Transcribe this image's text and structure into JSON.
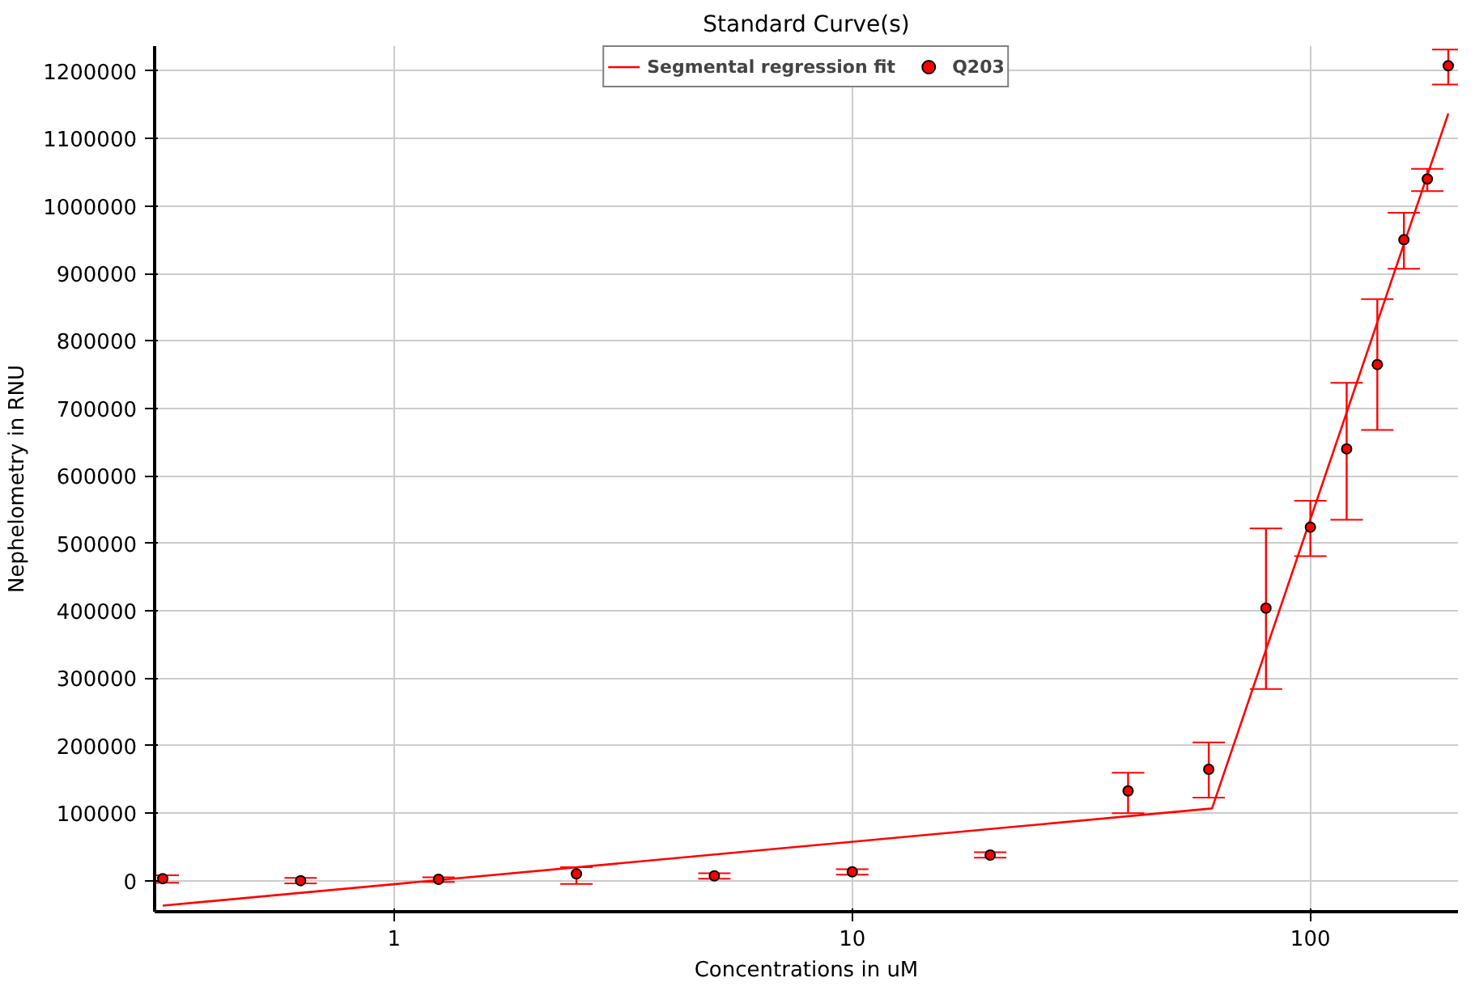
{
  "chart_data": {
    "type": "scatter",
    "title": "Standard Curve(s)",
    "xlabel": "Concentrations in uM",
    "ylabel": "Nephelometry in RNU",
    "log": "x",
    "grid": true,
    "legend": "top",
    "xlim": [
      0.3,
      210
    ],
    "ylim": [
      -46000,
      1237000
    ],
    "xticks": [
      1,
      10,
      100
    ],
    "yticks": [
      0,
      100000,
      200000,
      300000,
      400000,
      500000,
      600000,
      700000,
      800000,
      900000,
      1000000,
      1100000,
      1200000
    ],
    "series": [
      {
        "name": "Segmental regression fit",
        "type": "line",
        "color": "#ff0000",
        "marker": "none",
        "x": [
          0.3125,
          61,
          200
        ],
        "values": [
          -37000,
          107000,
          1137000
        ]
      },
      {
        "name": "Q203",
        "color": "#ff0000",
        "marker": "circle",
        "x": [
          0.3125,
          0.625,
          1.25,
          2.5,
          5,
          10,
          20,
          40,
          60,
          80,
          100,
          120,
          140,
          160,
          180,
          200
        ],
        "values": [
          3000,
          0,
          2000,
          10000,
          7000,
          13000,
          38000,
          133000,
          165000,
          404000,
          524000,
          640000,
          765000,
          950000,
          1040000,
          1208000
        ],
        "errors": [
          [
            -3000,
            8000
          ],
          [
            -4000,
            4000
          ],
          [
            -2000,
            5000
          ],
          [
            -5000,
            20000
          ],
          [
            3000,
            11000
          ],
          [
            9000,
            17000
          ],
          [
            34000,
            42000
          ],
          [
            100000,
            160000
          ],
          [
            123000,
            205000
          ],
          [
            284000,
            522000
          ],
          [
            481000,
            563000
          ],
          [
            535000,
            738000
          ],
          [
            668000,
            862000
          ],
          [
            907000,
            990000
          ],
          [
            1022000,
            1055000
          ],
          [
            1180000,
            1232000
          ]
        ]
      }
    ]
  }
}
